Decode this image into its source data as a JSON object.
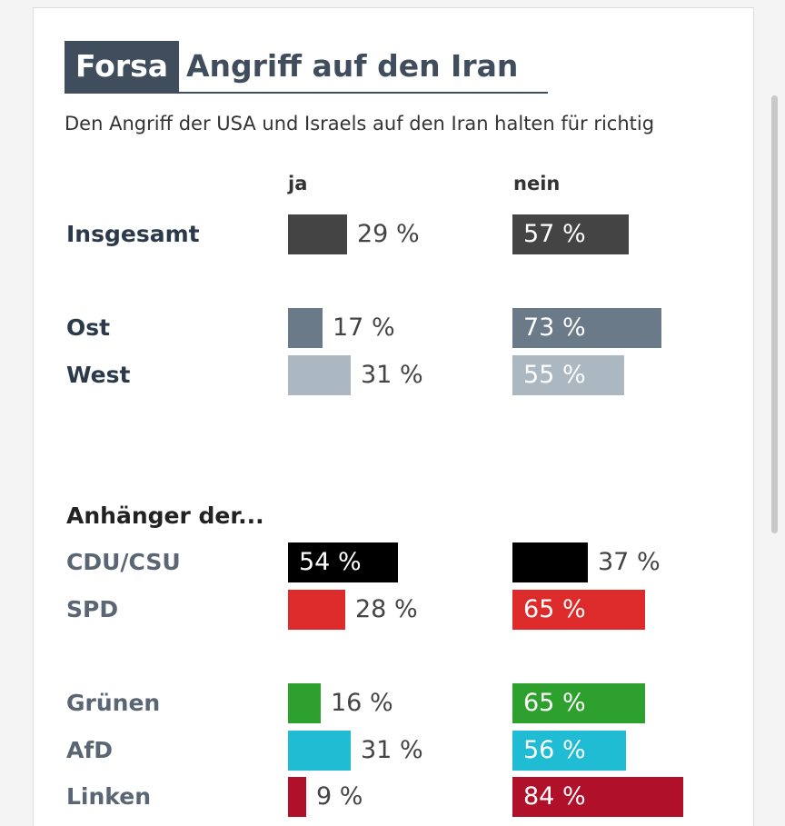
{
  "header": {
    "brand": "Forsa",
    "title": "Angriff auf den Iran",
    "subtitle": "Den Angriff der USA und Israels auf den Iran halten für richtig"
  },
  "columns": {
    "yes": "ja",
    "no": "nein"
  },
  "section_label": "Anhänger der...",
  "colors": {
    "title": "#3f4d5c",
    "group_label": "#2b3a4a",
    "party_label": "#5a6673"
  },
  "chart_data": {
    "type": "bar",
    "orientation": "horizontal",
    "title": "Angriff auf den Iran",
    "subtitle": "Den Angriff der USA und Israels auf den Iran halten für richtig",
    "unit": "%",
    "series": [
      {
        "name": "ja",
        "values": [
          29,
          17,
          31,
          54,
          28,
          16,
          31,
          9
        ]
      },
      {
        "name": "nein",
        "values": [
          57,
          73,
          55,
          37,
          65,
          65,
          56,
          84
        ]
      }
    ],
    "categories": [
      "Insgesamt",
      "Ost",
      "West",
      "CDU/CSU",
      "SPD",
      "Grünen",
      "AfD",
      "Linken"
    ],
    "rows": [
      {
        "label": "Insgesamt",
        "ja": 29,
        "nein": 57,
        "ja_text": "29 %",
        "nein_text": "57 %",
        "color": "#444444",
        "kind": "group"
      },
      {
        "label": "Ost",
        "ja": 17,
        "nein": 73,
        "ja_text": "17 %",
        "nein_text": "73 %",
        "color": "#6b7a88",
        "kind": "group"
      },
      {
        "label": "West",
        "ja": 31,
        "nein": 55,
        "ja_text": "31 %",
        "nein_text": "55 %",
        "color": "#abb8c2",
        "kind": "group"
      },
      {
        "label": "CDU/CSU",
        "ja": 54,
        "nein": 37,
        "ja_text": "54 %",
        "nein_text": "37 %",
        "color": "#000000",
        "kind": "party"
      },
      {
        "label": "SPD",
        "ja": 28,
        "nein": 65,
        "ja_text": "28 %",
        "nein_text": "65 %",
        "color": "#dd2b2b",
        "kind": "party"
      },
      {
        "label": "Grünen",
        "ja": 16,
        "nein": 65,
        "ja_text": "16 %",
        "nein_text": "65 %",
        "color": "#2da02d",
        "kind": "party"
      },
      {
        "label": "AfD",
        "ja": 31,
        "nein": 56,
        "ja_text": "31 %",
        "nein_text": "56 %",
        "color": "#20bcd4",
        "kind": "party"
      },
      {
        "label": "Linken",
        "ja": 9,
        "nein": 84,
        "ja_text": "9 %",
        "nein_text": "84 %",
        "color": "#b0102a",
        "kind": "party"
      }
    ]
  }
}
